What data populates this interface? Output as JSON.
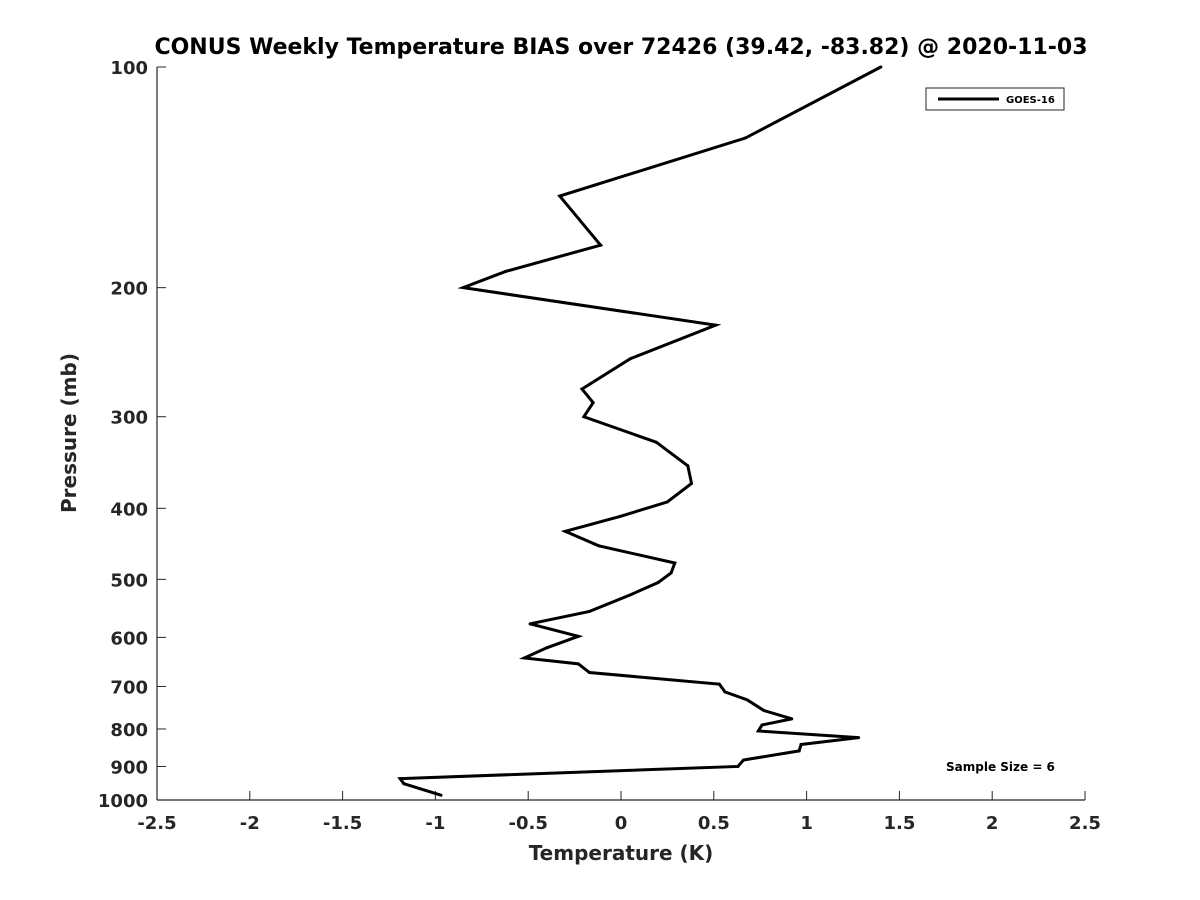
{
  "chart_data": {
    "type": "line",
    "title": "CONUS Weekly Temperature BIAS over 72426 (39.42, -83.82) @ 2020-11-03",
    "xlabel": "Temperature (K)",
    "ylabel": "Pressure (mb)",
    "xlim": [
      -2.5,
      2.5
    ],
    "ylim": [
      100,
      1000
    ],
    "y_scale": "log",
    "y_direction": "reversed",
    "grid": false,
    "xticks": [
      -2.5,
      -2,
      -1.5,
      -1,
      -0.5,
      0,
      0.5,
      1,
      1.5,
      2,
      2.5
    ],
    "xtick_labels": [
      "-2.5",
      "-2",
      "-1.5",
      "-1",
      "-0.5",
      "0",
      "0.5",
      "1",
      "1.5",
      "2",
      "2.5"
    ],
    "yticks": [
      100,
      200,
      300,
      400,
      500,
      600,
      700,
      800,
      900,
      1000
    ],
    "ytick_labels": [
      "100",
      "200",
      "300",
      "400",
      "500",
      "600",
      "700",
      "800",
      "900",
      "1000"
    ],
    "legend": {
      "position": "top-right",
      "entries": [
        {
          "name": "GOES-16",
          "color": "#000000"
        }
      ]
    },
    "annotation": "Sample Size = 6",
    "series": [
      {
        "name": "GOES-16",
        "color": "#000000",
        "points": [
          {
            "t": 1.4,
            "p": 100
          },
          {
            "t": 0.67,
            "p": 125
          },
          {
            "t": -0.33,
            "p": 150
          },
          {
            "t": -0.11,
            "p": 175
          },
          {
            "t": -0.62,
            "p": 190
          },
          {
            "t": -0.85,
            "p": 200
          },
          {
            "t": 0.51,
            "p": 225
          },
          {
            "t": 0.05,
            "p": 250
          },
          {
            "t": -0.21,
            "p": 275
          },
          {
            "t": -0.15,
            "p": 287
          },
          {
            "t": -0.2,
            "p": 300
          },
          {
            "t": 0.19,
            "p": 325
          },
          {
            "t": 0.36,
            "p": 350
          },
          {
            "t": 0.38,
            "p": 370
          },
          {
            "t": 0.25,
            "p": 392
          },
          {
            "t": 0.0,
            "p": 410
          },
          {
            "t": -0.3,
            "p": 430
          },
          {
            "t": -0.12,
            "p": 450
          },
          {
            "t": 0.29,
            "p": 475
          },
          {
            "t": 0.27,
            "p": 490
          },
          {
            "t": 0.2,
            "p": 505
          },
          {
            "t": 0.05,
            "p": 525
          },
          {
            "t": -0.17,
            "p": 553
          },
          {
            "t": -0.49,
            "p": 575
          },
          {
            "t": -0.23,
            "p": 598
          },
          {
            "t": -0.4,
            "p": 620
          },
          {
            "t": -0.52,
            "p": 640
          },
          {
            "t": -0.23,
            "p": 652
          },
          {
            "t": -0.17,
            "p": 670
          },
          {
            "t": 0.53,
            "p": 695
          },
          {
            "t": 0.56,
            "p": 712
          },
          {
            "t": 0.68,
            "p": 730
          },
          {
            "t": 0.77,
            "p": 755
          },
          {
            "t": 0.92,
            "p": 775
          },
          {
            "t": 0.76,
            "p": 790
          },
          {
            "t": 0.74,
            "p": 805
          },
          {
            "t": 1.28,
            "p": 822
          },
          {
            "t": 0.97,
            "p": 840
          },
          {
            "t": 0.96,
            "p": 857
          },
          {
            "t": 0.66,
            "p": 882
          },
          {
            "t": 0.63,
            "p": 900
          },
          {
            "t": -1.19,
            "p": 935
          },
          {
            "t": -1.17,
            "p": 950
          },
          {
            "t": -0.97,
            "p": 985
          }
        ]
      }
    ]
  }
}
